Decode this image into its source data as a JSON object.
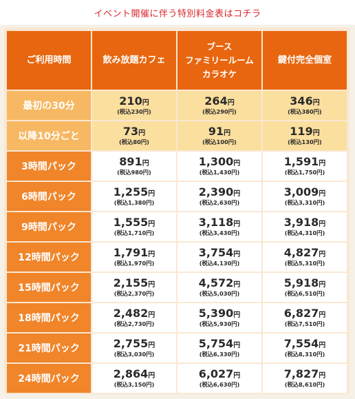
{
  "banner": {
    "link_text": "イベント開催に伴う特別料金表はコチラ"
  },
  "table": {
    "headers": {
      "time": "ご利用時間",
      "cafe": "飲み放題カフェ",
      "booth_lines": [
        "ブース",
        "ファミリールーム",
        "カラオケ"
      ],
      "private": "鍵付完全個室"
    },
    "yen": "円",
    "rows": [
      {
        "label": "最初の30分",
        "cafe": {
          "price": "210",
          "tax": "(税込230円)"
        },
        "booth": {
          "price": "264",
          "tax": "(税込290円)"
        },
        "private": {
          "price": "346",
          "tax": "(税込380円)"
        }
      },
      {
        "label": "以降10分ごと",
        "cafe": {
          "price": "73",
          "tax": "(税込80円)"
        },
        "booth": {
          "price": "91",
          "tax": "(税込100円)"
        },
        "private": {
          "price": "119",
          "tax": "(税込130円)"
        }
      },
      {
        "label": "3時間パック",
        "cafe": {
          "price": "891",
          "tax": "(税込980円)"
        },
        "booth": {
          "price": "1,300",
          "tax": "(税込1,430円)"
        },
        "private": {
          "price": "1,591",
          "tax": "(税込1,750円)"
        }
      },
      {
        "label": "6時間パック",
        "cafe": {
          "price": "1,255",
          "tax": "(税込1,380円)"
        },
        "booth": {
          "price": "2,390",
          "tax": "(税込2,630円)"
        },
        "private": {
          "price": "3,009",
          "tax": "(税込3,310円)"
        }
      },
      {
        "label": "9時間パック",
        "cafe": {
          "price": "1,555",
          "tax": "(税込1,710円)"
        },
        "booth": {
          "price": "3,118",
          "tax": "(税込3,430円)"
        },
        "private": {
          "price": "3,918",
          "tax": "(税込4,310円)"
        }
      },
      {
        "label": "12時間パック",
        "cafe": {
          "price": "1,791",
          "tax": "(税込1,970円)"
        },
        "booth": {
          "price": "3,754",
          "tax": "(税込4,130円)"
        },
        "private": {
          "price": "4,827",
          "tax": "(税込5,310円)"
        }
      },
      {
        "label": "15時間パック",
        "cafe": {
          "price": "2,155",
          "tax": "(税込2,370円)"
        },
        "booth": {
          "price": "4,572",
          "tax": "(税込5,030円)"
        },
        "private": {
          "price": "5,918",
          "tax": "(税込6,510円)"
        }
      },
      {
        "label": "18時間パック",
        "cafe": {
          "price": "2,482",
          "tax": "(税込2,730円)"
        },
        "booth": {
          "price": "5,390",
          "tax": "(税込5,930円)"
        },
        "private": {
          "price": "6,827",
          "tax": "(税込7,510円)"
        }
      },
      {
        "label": "21時間パック",
        "cafe": {
          "price": "2,755",
          "tax": "(税込3,030円)"
        },
        "booth": {
          "price": "5,754",
          "tax": "(税込6,330円)"
        },
        "private": {
          "price": "7,554",
          "tax": "(税込8,310円)"
        }
      },
      {
        "label": "24時間パック",
        "cafe": {
          "price": "2,864",
          "tax": "(税込3,150円)"
        },
        "booth": {
          "price": "6,027",
          "tax": "(税込6,630円)"
        },
        "private": {
          "price": "7,827",
          "tax": "(税込8,610円)"
        }
      }
    ]
  }
}
